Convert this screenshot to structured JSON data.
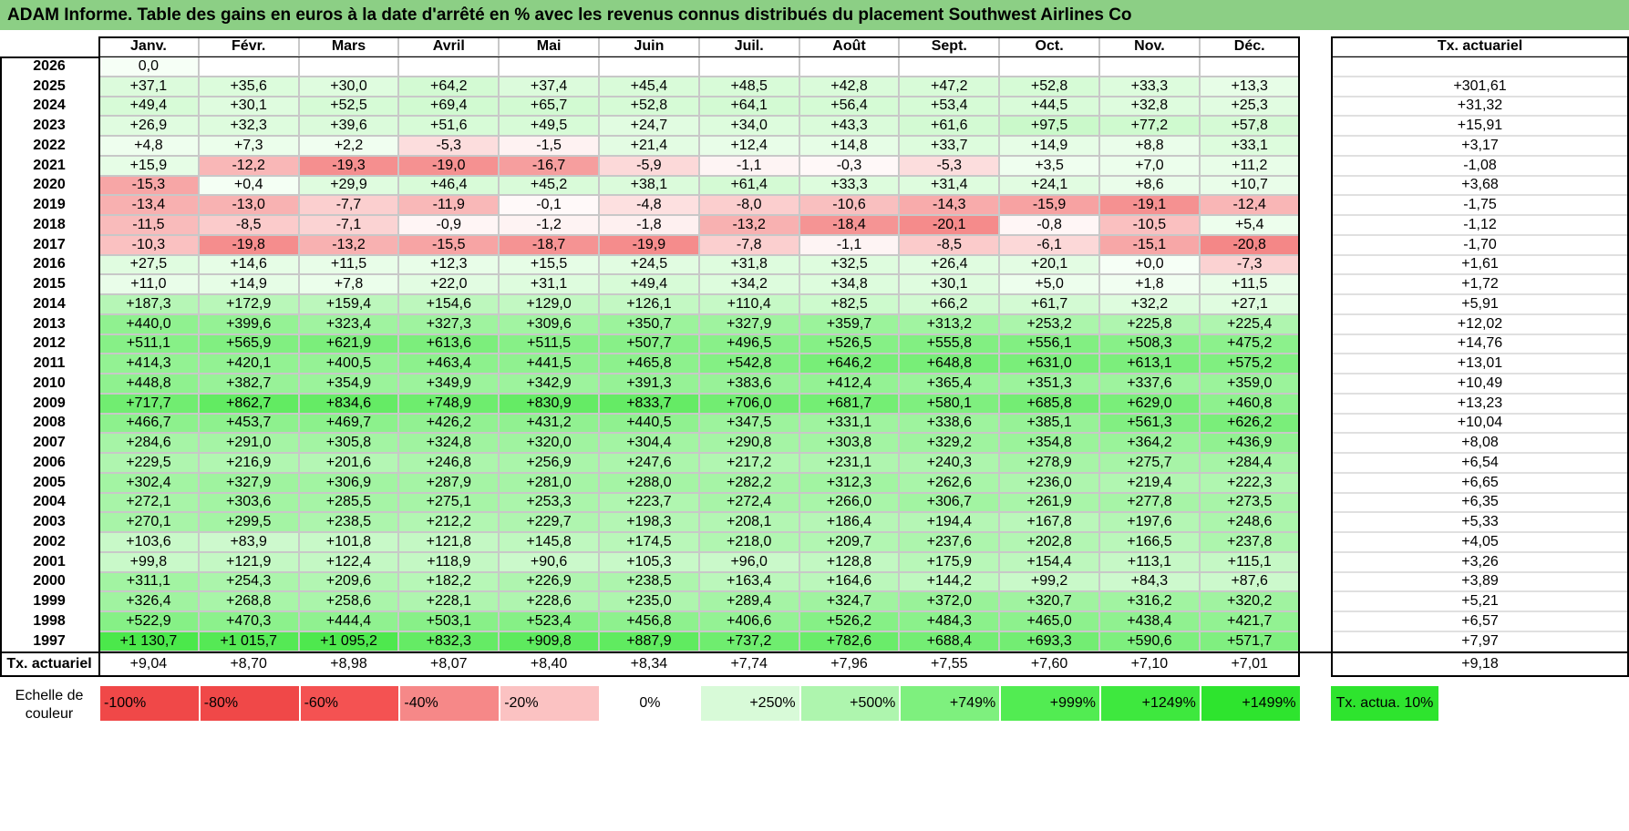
{
  "title": "ADAM Informe. Table des gains en euros à la date d'arrêté en % avec les revenus connus distribués du placement Southwest Airlines Co",
  "months": [
    "Janv.",
    "Févr.",
    "Mars",
    "Avril",
    "Mai",
    "Juin",
    "Juil.",
    "Août",
    "Sept.",
    "Oct.",
    "Nov.",
    "Déc."
  ],
  "rate_header": "Tx. actuariel",
  "rows": [
    {
      "year": "2026",
      "values": [
        "0,0",
        "",
        "",
        "",
        "",
        "",
        "",
        "",
        "",
        "",
        "",
        ""
      ],
      "rate": ""
    },
    {
      "year": "2025",
      "values": [
        "+37,1",
        "+35,6",
        "+30,0",
        "+64,2",
        "+37,4",
        "+45,4",
        "+48,5",
        "+42,8",
        "+47,2",
        "+52,8",
        "+33,3",
        "+13,3"
      ],
      "rate": "+301,61"
    },
    {
      "year": "2024",
      "values": [
        "+49,4",
        "+30,1",
        "+52,5",
        "+69,4",
        "+65,7",
        "+52,8",
        "+64,1",
        "+56,4",
        "+53,4",
        "+44,5",
        "+32,8",
        "+25,3"
      ],
      "rate": "+31,32"
    },
    {
      "year": "2023",
      "values": [
        "+26,9",
        "+32,3",
        "+39,6",
        "+51,6",
        "+49,5",
        "+24,7",
        "+34,0",
        "+43,3",
        "+61,6",
        "+97,5",
        "+77,2",
        "+57,8"
      ],
      "rate": "+15,91"
    },
    {
      "year": "2022",
      "values": [
        "+4,8",
        "+7,3",
        "+2,2",
        "-5,3",
        "-1,5",
        "+21,4",
        "+12,4",
        "+14,8",
        "+33,7",
        "+14,9",
        "+8,8",
        "+33,1"
      ],
      "rate": "+3,17"
    },
    {
      "year": "2021",
      "values": [
        "+15,9",
        "-12,2",
        "-19,3",
        "-19,0",
        "-16,7",
        "-5,9",
        "-1,1",
        "-0,3",
        "-5,3",
        "+3,5",
        "+7,0",
        "+11,2"
      ],
      "rate": "-1,08"
    },
    {
      "year": "2020",
      "values": [
        "-15,3",
        "+0,4",
        "+29,9",
        "+46,4",
        "+45,2",
        "+38,1",
        "+61,4",
        "+33,3",
        "+31,4",
        "+24,1",
        "+8,6",
        "+10,7"
      ],
      "rate": "+3,68"
    },
    {
      "year": "2019",
      "values": [
        "-13,4",
        "-13,0",
        "-7,7",
        "-11,9",
        "-0,1",
        "-4,8",
        "-8,0",
        "-10,6",
        "-14,3",
        "-15,9",
        "-19,1",
        "-12,4"
      ],
      "rate": "-1,75"
    },
    {
      "year": "2018",
      "values": [
        "-11,5",
        "-8,5",
        "-7,1",
        "-0,9",
        "-1,2",
        "-1,8",
        "-13,2",
        "-18,4",
        "-20,1",
        "-0,8",
        "-10,5",
        "+5,4"
      ],
      "rate": "-1,12"
    },
    {
      "year": "2017",
      "values": [
        "-10,3",
        "-19,8",
        "-13,2",
        "-15,5",
        "-18,7",
        "-19,9",
        "-7,8",
        "-1,1",
        "-8,5",
        "-6,1",
        "-15,1",
        "-20,8"
      ],
      "rate": "-1,70"
    },
    {
      "year": "2016",
      "values": [
        "+27,5",
        "+14,6",
        "+11,5",
        "+12,3",
        "+15,5",
        "+24,5",
        "+31,8",
        "+32,5",
        "+26,4",
        "+20,1",
        "+0,0",
        "-7,3"
      ],
      "rate": "+1,61"
    },
    {
      "year": "2015",
      "values": [
        "+11,0",
        "+14,9",
        "+7,8",
        "+22,0",
        "+31,1",
        "+49,4",
        "+34,2",
        "+34,8",
        "+30,1",
        "+5,0",
        "+1,8",
        "+11,5"
      ],
      "rate": "+1,72"
    },
    {
      "year": "2014",
      "values": [
        "+187,3",
        "+172,9",
        "+159,4",
        "+154,6",
        "+129,0",
        "+126,1",
        "+110,4",
        "+82,5",
        "+66,2",
        "+61,7",
        "+32,2",
        "+27,1"
      ],
      "rate": "+5,91"
    },
    {
      "year": "2013",
      "values": [
        "+440,0",
        "+399,6",
        "+323,4",
        "+327,3",
        "+309,6",
        "+350,7",
        "+327,9",
        "+359,7",
        "+313,2",
        "+253,2",
        "+225,8",
        "+225,4"
      ],
      "rate": "+12,02"
    },
    {
      "year": "2012",
      "values": [
        "+511,1",
        "+565,9",
        "+621,9",
        "+613,6",
        "+511,5",
        "+507,7",
        "+496,5",
        "+526,5",
        "+555,8",
        "+556,1",
        "+508,3",
        "+475,2"
      ],
      "rate": "+14,76"
    },
    {
      "year": "2011",
      "values": [
        "+414,3",
        "+420,1",
        "+400,5",
        "+463,4",
        "+441,5",
        "+465,8",
        "+542,8",
        "+646,2",
        "+648,8",
        "+631,0",
        "+613,1",
        "+575,2"
      ],
      "rate": "+13,01"
    },
    {
      "year": "2010",
      "values": [
        "+448,8",
        "+382,7",
        "+354,9",
        "+349,9",
        "+342,9",
        "+391,3",
        "+383,6",
        "+412,4",
        "+365,4",
        "+351,3",
        "+337,6",
        "+359,0"
      ],
      "rate": "+10,49"
    },
    {
      "year": "2009",
      "values": [
        "+717,7",
        "+862,7",
        "+834,6",
        "+748,9",
        "+830,9",
        "+833,7",
        "+706,0",
        "+681,7",
        "+580,1",
        "+685,8",
        "+629,0",
        "+460,8"
      ],
      "rate": "+13,23"
    },
    {
      "year": "2008",
      "values": [
        "+466,7",
        "+453,7",
        "+469,7",
        "+426,2",
        "+431,2",
        "+440,5",
        "+347,5",
        "+331,1",
        "+338,6",
        "+385,1",
        "+561,3",
        "+626,2"
      ],
      "rate": "+10,04"
    },
    {
      "year": "2007",
      "values": [
        "+284,6",
        "+291,0",
        "+305,8",
        "+324,8",
        "+320,0",
        "+304,4",
        "+290,8",
        "+303,8",
        "+329,2",
        "+354,8",
        "+364,2",
        "+436,9"
      ],
      "rate": "+8,08"
    },
    {
      "year": "2006",
      "values": [
        "+229,5",
        "+216,9",
        "+201,6",
        "+246,8",
        "+256,9",
        "+247,6",
        "+217,2",
        "+231,1",
        "+240,3",
        "+278,9",
        "+275,7",
        "+284,4"
      ],
      "rate": "+6,54"
    },
    {
      "year": "2005",
      "values": [
        "+302,4",
        "+327,9",
        "+306,9",
        "+287,9",
        "+281,0",
        "+288,0",
        "+282,2",
        "+312,3",
        "+262,6",
        "+236,0",
        "+219,4",
        "+222,3"
      ],
      "rate": "+6,65"
    },
    {
      "year": "2004",
      "values": [
        "+272,1",
        "+303,6",
        "+285,5",
        "+275,1",
        "+253,3",
        "+223,7",
        "+272,4",
        "+266,0",
        "+306,7",
        "+261,9",
        "+277,8",
        "+273,5"
      ],
      "rate": "+6,35"
    },
    {
      "year": "2003",
      "values": [
        "+270,1",
        "+299,5",
        "+238,5",
        "+212,2",
        "+229,7",
        "+198,3",
        "+208,1",
        "+186,4",
        "+194,4",
        "+167,8",
        "+197,6",
        "+248,6"
      ],
      "rate": "+5,33"
    },
    {
      "year": "2002",
      "values": [
        "+103,6",
        "+83,9",
        "+101,8",
        "+121,8",
        "+145,8",
        "+174,5",
        "+218,0",
        "+209,7",
        "+237,6",
        "+202,8",
        "+166,5",
        "+237,8"
      ],
      "rate": "+4,05"
    },
    {
      "year": "2001",
      "values": [
        "+99,8",
        "+121,9",
        "+122,4",
        "+118,9",
        "+90,6",
        "+105,3",
        "+96,0",
        "+128,8",
        "+175,9",
        "+154,4",
        "+113,1",
        "+115,1"
      ],
      "rate": "+3,26"
    },
    {
      "year": "2000",
      "values": [
        "+311,1",
        "+254,3",
        "+209,6",
        "+182,2",
        "+226,9",
        "+238,5",
        "+163,4",
        "+164,6",
        "+144,2",
        "+99,2",
        "+84,3",
        "+87,6"
      ],
      "rate": "+3,89"
    },
    {
      "year": "1999",
      "values": [
        "+326,4",
        "+268,8",
        "+258,6",
        "+228,1",
        "+228,6",
        "+235,0",
        "+289,4",
        "+324,7",
        "+372,0",
        "+320,7",
        "+316,2",
        "+320,2"
      ],
      "rate": "+5,21"
    },
    {
      "year": "1998",
      "values": [
        "+522,9",
        "+470,3",
        "+444,4",
        "+503,1",
        "+523,4",
        "+456,8",
        "+406,6",
        "+526,2",
        "+484,3",
        "+465,0",
        "+438,4",
        "+421,7"
      ],
      "rate": "+6,57"
    },
    {
      "year": "1997",
      "values": [
        "+1 130,7",
        "+1 015,7",
        "+1 095,2",
        "+832,3",
        "+909,8",
        "+887,9",
        "+737,2",
        "+782,6",
        "+688,4",
        "+693,3",
        "+590,6",
        "+571,7"
      ],
      "rate": "+7,97"
    }
  ],
  "footer": {
    "label": "Tx. actuariel",
    "values": [
      "+9,04",
      "+8,70",
      "+8,98",
      "+8,07",
      "+8,40",
      "+8,34",
      "+7,74",
      "+7,96",
      "+7,55",
      "+7,60",
      "+7,10",
      "+7,01"
    ],
    "total": "+9,18"
  },
  "legend": {
    "label": "Echelle de couleur",
    "items": [
      {
        "text": "-100%",
        "color": "#f04848",
        "align": "left"
      },
      {
        "text": "-80%",
        "color": "#f04848",
        "align": "left"
      },
      {
        "text": "-60%",
        "color": "#f45252",
        "align": "left"
      },
      {
        "text": "-40%",
        "color": "#f68888",
        "align": "left"
      },
      {
        "text": "-20%",
        "color": "#fbc2c2",
        "align": "left"
      },
      {
        "text": "0%",
        "color": "#ffffff",
        "align": "center"
      },
      {
        "text": "+250%",
        "color": "#d8fad8",
        "align": "right"
      },
      {
        "text": "+500%",
        "color": "#aef5ae",
        "align": "right"
      },
      {
        "text": "+749%",
        "color": "#7ef07e",
        "align": "right"
      },
      {
        "text": "+999%",
        "color": "#52ec52",
        "align": "right"
      },
      {
        "text": "+1249%",
        "color": "#3ee83e",
        "align": "right"
      },
      {
        "text": "+1499%",
        "color": "#2ee42e",
        "align": "right"
      }
    ],
    "rate_box": {
      "text": "Tx. actua. 10%",
      "color": "#2ee42e"
    }
  },
  "colors": {
    "title_bg": "#8ccf85",
    "pos_max": "#2ee42e",
    "neg_max": "#f04848",
    "grid": "#c8c8c8",
    "border": "#000000"
  }
}
